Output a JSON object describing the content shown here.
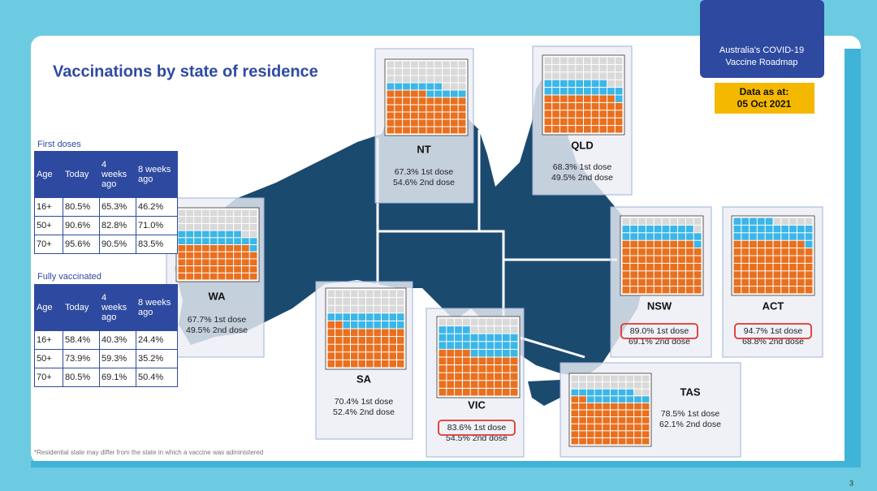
{
  "header": {
    "title": "Vaccinations by state of residence",
    "roadmap": [
      "Australia's COVID-19",
      "Vaccine Roadmap"
    ],
    "data_as_at": [
      "Data as at:",
      "05 Oct 2021"
    ]
  },
  "first_doses": {
    "label": "First doses",
    "columns": [
      "Age",
      "Today",
      "4 weeks ago",
      "8 weeks ago"
    ],
    "rows": [
      [
        "16+",
        "80.5%",
        "65.3%",
        "46.2%"
      ],
      [
        "50+",
        "90.6%",
        "82.8%",
        "71.0%"
      ],
      [
        "70+",
        "95.6%",
        "90.5%",
        "83.5%"
      ]
    ]
  },
  "fully_vaccinated": {
    "label": "Fully vaccinated",
    "columns": [
      "Age",
      "Today",
      "4 weeks ago",
      "8 weeks ago"
    ],
    "rows": [
      [
        "16+",
        "58.4%",
        "40.3%",
        "24.4%"
      ],
      [
        "50+",
        "73.9%",
        "59.3%",
        "35.2%"
      ],
      [
        "70+",
        "80.5%",
        "69.1%",
        "50.4%"
      ]
    ]
  },
  "waffle_colors": {
    "second_dose": "#e8701f",
    "first_dose": "#3bb6e8",
    "none": "#d9d9d9"
  },
  "states": [
    {
      "name": "NT",
      "first_dose": {
        "value": 67.3,
        "label": "67.3% 1st dose"
      },
      "second_dose": {
        "value": 54.6,
        "label": "54.6% 2nd dose"
      },
      "highlight": false
    },
    {
      "name": "QLD",
      "first_dose": {
        "value": 68.3,
        "label": "68.3% 1st dose"
      },
      "second_dose": {
        "value": 49.5,
        "label": "49.5% 2nd dose"
      },
      "highlight": false
    },
    {
      "name": "WA",
      "first_dose": {
        "value": 67.7,
        "label": "67.7% 1st dose"
      },
      "second_dose": {
        "value": 49.5,
        "label": "49.5% 2nd dose"
      },
      "highlight": false
    },
    {
      "name": "SA",
      "first_dose": {
        "value": 70.4,
        "label": "70.4% 1st dose"
      },
      "second_dose": {
        "value": 52.4,
        "label": "52.4% 2nd dose"
      },
      "highlight": false
    },
    {
      "name": "VIC",
      "first_dose": {
        "value": 83.6,
        "label": "83.6% 1st dose"
      },
      "second_dose": {
        "value": 54.5,
        "label": "54.5% 2nd dose"
      },
      "highlight": true
    },
    {
      "name": "NSW",
      "first_dose": {
        "value": 89.0,
        "label": "89.0% 1st dose"
      },
      "second_dose": {
        "value": 69.1,
        "label": "69.1% 2nd dose"
      },
      "highlight": true
    },
    {
      "name": "ACT",
      "first_dose": {
        "value": 94.7,
        "label": "94.7% 1st dose"
      },
      "second_dose": {
        "value": 68.8,
        "label": "68.8% 2nd dose"
      },
      "highlight": true
    },
    {
      "name": "TAS",
      "first_dose": {
        "value": 78.5,
        "label": "78.5% 1st dose"
      },
      "second_dose": {
        "value": 62.1,
        "label": "62.1% 2nd dose"
      },
      "highlight": false
    }
  ],
  "footnote": "*Residential state may differ from the state in which a vaccine was administered",
  "page_number": "3"
}
